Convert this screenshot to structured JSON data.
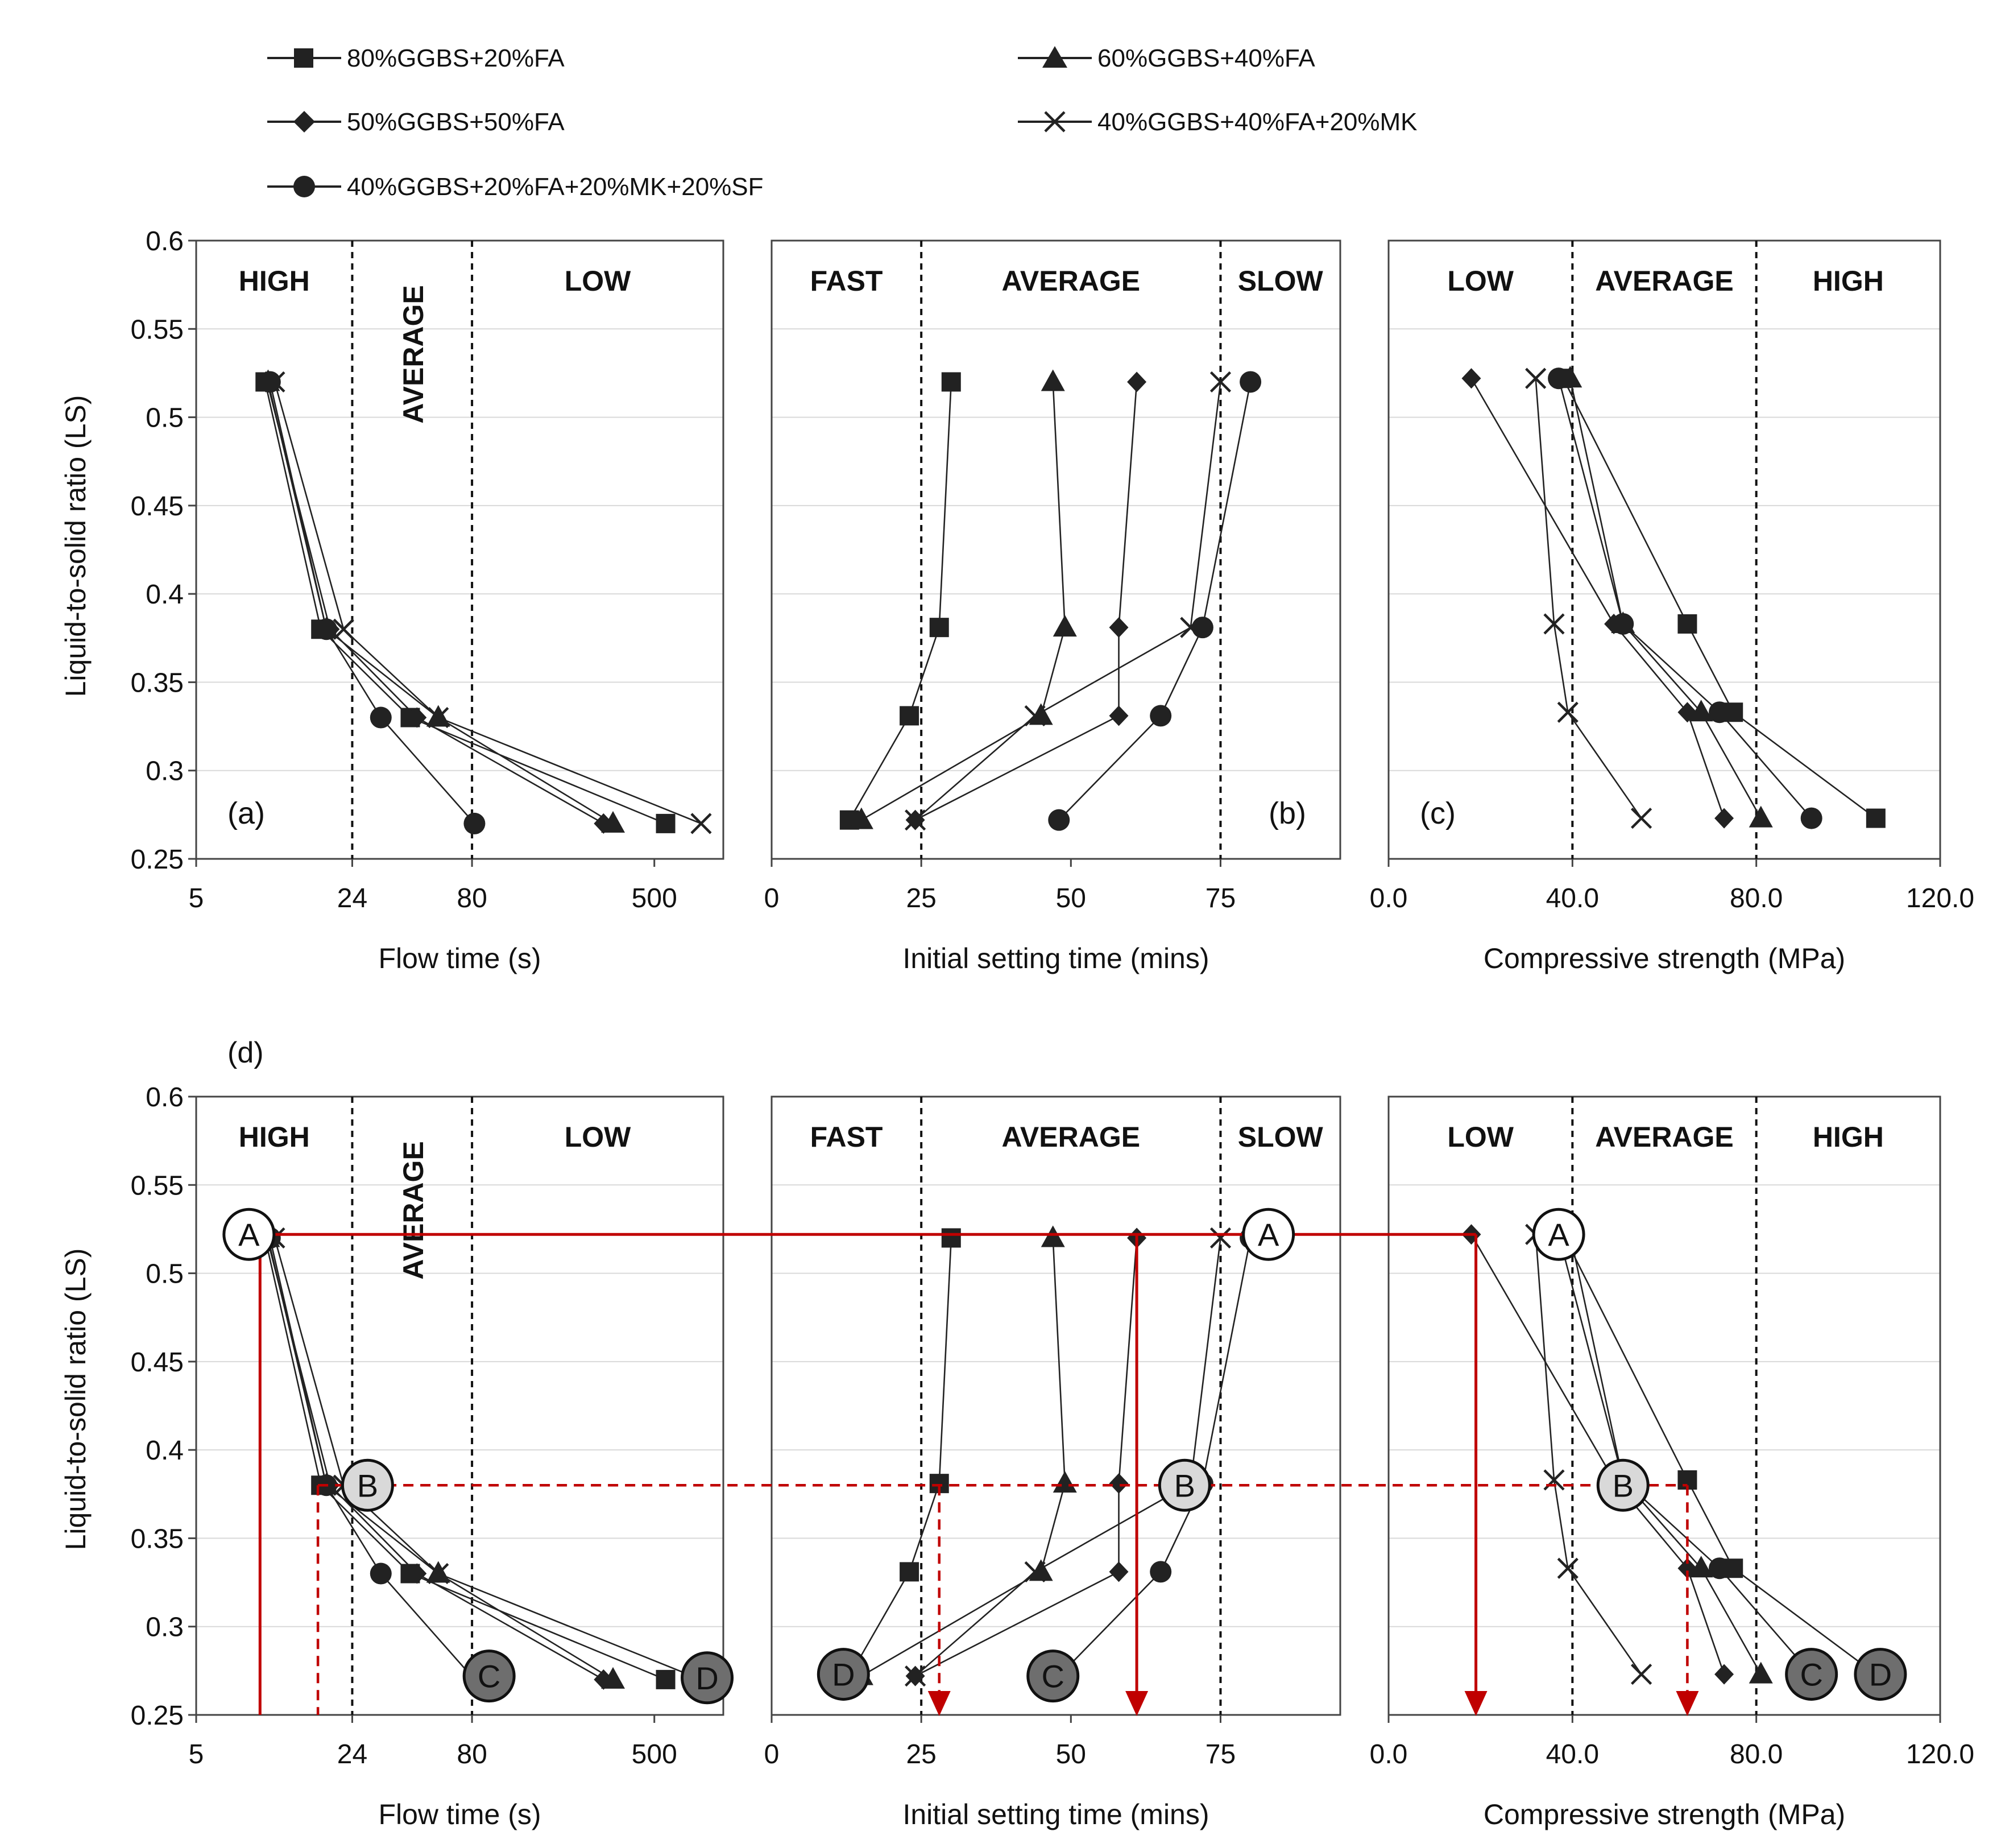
{
  "legend": [
    {
      "label": "80%GGBS+20%FA",
      "marker": "square"
    },
    {
      "label": "60%GGBS+40%FA",
      "marker": "triangle"
    },
    {
      "label": "50%GGBS+50%FA",
      "marker": "diamond"
    },
    {
      "label": "40%GGBS+40%FA+20%MK",
      "marker": "x"
    },
    {
      "label": "40%GGBS+20%FA+20%MK+20%SF",
      "marker": "circle"
    }
  ],
  "ylabel": "Liquid-to-solid ratio (LS)",
  "y_ticks": [
    "0.6",
    "0.55",
    "0.5",
    "0.45",
    "0.4",
    "0.35",
    "0.3",
    "0.25"
  ],
  "panel_d_label": "(d)",
  "colors": {
    "ink": "#222222",
    "guide": "#c00000",
    "grid": "#d9d9d9",
    "circle_light": "#d9d9d9",
    "circle_dark": "#6e6e6e"
  },
  "chart_data": [
    {
      "id": "a",
      "type": "line",
      "title": "(a)",
      "xlabel": "Flow time (s)",
      "x_scale": "log",
      "xlim": [
        5,
        1000
      ],
      "x_ticks": [
        "5",
        "24",
        "80",
        "500"
      ],
      "ylim": [
        0.25,
        0.6
      ],
      "zone_boundaries": [
        24,
        80
      ],
      "zones": [
        {
          "label": "HIGH"
        },
        {
          "label": "AVERAGE",
          "rotated": true
        },
        {
          "label": "LOW"
        }
      ],
      "series": [
        {
          "name": "80%GGBS+20%FA",
          "marker": "square",
          "x": [
            10,
            17.5,
            43,
            560
          ],
          "y": [
            0.52,
            0.38,
            0.33,
            0.27
          ]
        },
        {
          "name": "60%GGBS+40%FA",
          "marker": "triangle",
          "x": [
            10.3,
            18.5,
            57,
            330
          ],
          "y": [
            0.52,
            0.38,
            0.33,
            0.27
          ]
        },
        {
          "name": "50%GGBS+50%FA",
          "marker": "diamond",
          "x": [
            10.2,
            19.2,
            46,
            300
          ],
          "y": [
            0.52,
            0.38,
            0.33,
            0.27
          ]
        },
        {
          "name": "40%GGBS+40%FA+20%MK",
          "marker": "x",
          "x": [
            11,
            22,
            57,
            800
          ],
          "y": [
            0.52,
            0.38,
            0.33,
            0.27
          ]
        },
        {
          "name": "40%GGBS+20%FA+20%MK+20%SF",
          "marker": "circle",
          "x": [
            10.5,
            18.5,
            32,
            82
          ],
          "y": [
            0.52,
            0.38,
            0.33,
            0.27
          ]
        }
      ]
    },
    {
      "id": "b",
      "type": "line",
      "title": "(b)",
      "xlabel": "Initial setting time (mins)",
      "x_scale": "linear",
      "xlim": [
        0,
        95
      ],
      "x_ticks": [
        "0",
        "25",
        "50",
        "75"
      ],
      "ylim": [
        0.25,
        0.6
      ],
      "zone_boundaries": [
        25,
        75
      ],
      "zones": [
        {
          "label": "FAST"
        },
        {
          "label": "AVERAGE"
        },
        {
          "label": "SLOW"
        }
      ],
      "series": [
        {
          "name": "80%GGBS+20%FA",
          "marker": "square",
          "x": [
            30,
            28,
            23,
            13
          ],
          "y": [
            0.52,
            0.381,
            0.331,
            0.272
          ]
        },
        {
          "name": "60%GGBS+40%FA",
          "marker": "triangle",
          "x": [
            47,
            49,
            45,
            15
          ],
          "y": [
            0.52,
            0.381,
            0.331,
            0.272
          ]
        },
        {
          "name": "50%GGBS+50%FA",
          "marker": "diamond",
          "x": [
            61,
            58,
            58,
            24
          ],
          "y": [
            0.52,
            0.381,
            0.331,
            0.272
          ]
        },
        {
          "name": "40%GGBS+40%FA+20%MK",
          "marker": "x",
          "x": [
            75,
            70,
            44,
            24
          ],
          "y": [
            0.52,
            0.381,
            0.331,
            0.272
          ]
        },
        {
          "name": "40%GGBS+20%FA+20%MK+20%SF",
          "marker": "circle",
          "x": [
            80,
            72,
            65,
            48
          ],
          "y": [
            0.52,
            0.381,
            0.331,
            0.272
          ]
        }
      ]
    },
    {
      "id": "c",
      "type": "line",
      "title": "(c)",
      "xlabel": "Compressive strength (MPa)",
      "x_scale": "linear",
      "xlim": [
        0,
        120
      ],
      "x_ticks": [
        "0.0",
        "40.0",
        "80.0",
        "120.0"
      ],
      "ylim": [
        0.25,
        0.6
      ],
      "zone_boundaries": [
        40,
        80
      ],
      "zones": [
        {
          "label": "LOW"
        },
        {
          "label": "AVERAGE"
        },
        {
          "label": "HIGH"
        }
      ],
      "series": [
        {
          "name": "80%GGBS+20%FA",
          "marker": "square",
          "x": [
            38,
            65,
            75,
            106
          ],
          "y": [
            0.522,
            0.383,
            0.333,
            0.273
          ]
        },
        {
          "name": "60%GGBS+40%FA",
          "marker": "triangle",
          "x": [
            39.5,
            51,
            68,
            81
          ],
          "y": [
            0.522,
            0.383,
            0.333,
            0.273
          ]
        },
        {
          "name": "50%GGBS+50%FA",
          "marker": "diamond",
          "x": [
            18,
            49,
            65,
            73
          ],
          "y": [
            0.522,
            0.383,
            0.333,
            0.273
          ]
        },
        {
          "name": "40%GGBS+40%FA+20%MK",
          "marker": "x",
          "x": [
            32,
            36,
            39,
            55
          ],
          "y": [
            0.522,
            0.383,
            0.333,
            0.273
          ]
        },
        {
          "name": "40%GGBS+20%FA+20%MK+20%SF",
          "marker": "circle",
          "x": [
            37,
            51,
            72,
            92
          ],
          "y": [
            0.522,
            0.383,
            0.333,
            0.273
          ]
        }
      ]
    },
    {
      "id": "d1",
      "type": "line",
      "title": "",
      "xlabel": "Flow time (s)",
      "x_scale": "log",
      "xlim": [
        5,
        1000
      ],
      "x_ticks": [
        "5",
        "24",
        "80",
        "500"
      ],
      "ylim": [
        0.25,
        0.6
      ],
      "zone_boundaries": [
        24,
        80
      ],
      "zones": [
        {
          "label": "HIGH"
        },
        {
          "label": "AVERAGE",
          "rotated": true
        },
        {
          "label": "LOW"
        }
      ],
      "series": [
        {
          "name": "80%GGBS+20%FA",
          "marker": "square",
          "x": [
            10,
            17.5,
            43,
            560
          ],
          "y": [
            0.52,
            0.38,
            0.33,
            0.27
          ]
        },
        {
          "name": "60%GGBS+40%FA",
          "marker": "triangle",
          "x": [
            10.3,
            18.5,
            57,
            330
          ],
          "y": [
            0.52,
            0.38,
            0.33,
            0.27
          ]
        },
        {
          "name": "50%GGBS+50%FA",
          "marker": "diamond",
          "x": [
            10.2,
            19.2,
            46,
            300
          ],
          "y": [
            0.52,
            0.38,
            0.33,
            0.27
          ]
        },
        {
          "name": "40%GGBS+40%FA+20%MK",
          "marker": "x",
          "x": [
            11,
            22,
            57,
            800
          ],
          "y": [
            0.52,
            0.38,
            0.33,
            0.27
          ]
        },
        {
          "name": "40%GGBS+20%FA+20%MK+20%SF",
          "marker": "circle",
          "x": [
            10.5,
            18.5,
            32,
            82
          ],
          "y": [
            0.52,
            0.38,
            0.33,
            0.27
          ]
        }
      ],
      "annotations": [
        {
          "label": "A",
          "x": 8.5,
          "y": 0.522,
          "shade": "white"
        },
        {
          "label": "B",
          "x": 28,
          "y": 0.38,
          "shade": "light"
        },
        {
          "label": "C",
          "x": 95,
          "y": 0.272,
          "shade": "dark"
        },
        {
          "label": "D",
          "x": 850,
          "y": 0.271,
          "shade": "dark"
        }
      ]
    },
    {
      "id": "d2",
      "type": "line",
      "title": "",
      "xlabel": "Initial setting time (mins)",
      "x_scale": "linear",
      "xlim": [
        0,
        95
      ],
      "x_ticks": [
        "0",
        "25",
        "50",
        "75"
      ],
      "ylim": [
        0.25,
        0.6
      ],
      "zone_boundaries": [
        25,
        75
      ],
      "zones": [
        {
          "label": "FAST"
        },
        {
          "label": "AVERAGE"
        },
        {
          "label": "SLOW"
        }
      ],
      "series": [
        {
          "name": "80%GGBS+20%FA",
          "marker": "square",
          "x": [
            30,
            28,
            23,
            13
          ],
          "y": [
            0.52,
            0.381,
            0.331,
            0.272
          ]
        },
        {
          "name": "60%GGBS+40%FA",
          "marker": "triangle",
          "x": [
            47,
            49,
            45,
            15
          ],
          "y": [
            0.52,
            0.381,
            0.331,
            0.272
          ]
        },
        {
          "name": "50%GGBS+50%FA",
          "marker": "diamond",
          "x": [
            61,
            58,
            58,
            24
          ],
          "y": [
            0.52,
            0.381,
            0.331,
            0.272
          ]
        },
        {
          "name": "40%GGBS+40%FA+20%MK",
          "marker": "x",
          "x": [
            75,
            70,
            44,
            24
          ],
          "y": [
            0.52,
            0.381,
            0.331,
            0.272
          ]
        },
        {
          "name": "40%GGBS+20%FA+20%MK+20%SF",
          "marker": "circle",
          "x": [
            80,
            72,
            65,
            48
          ],
          "y": [
            0.52,
            0.381,
            0.331,
            0.272
          ]
        }
      ],
      "annotations": [
        {
          "label": "A",
          "x": 83,
          "y": 0.522,
          "shade": "white"
        },
        {
          "label": "B",
          "x": 69,
          "y": 0.38,
          "shade": "light"
        },
        {
          "label": "C",
          "x": 47,
          "y": 0.272,
          "shade": "dark"
        },
        {
          "label": "D",
          "x": 12,
          "y": 0.273,
          "shade": "dark"
        }
      ]
    },
    {
      "id": "d3",
      "type": "line",
      "title": "",
      "xlabel": "Compressive strength (MPa)",
      "x_scale": "linear",
      "xlim": [
        0,
        120
      ],
      "x_ticks": [
        "0.0",
        "40.0",
        "80.0",
        "120.0"
      ],
      "ylim": [
        0.25,
        0.6
      ],
      "zone_boundaries": [
        40,
        80
      ],
      "zones": [
        {
          "label": "LOW"
        },
        {
          "label": "AVERAGE"
        },
        {
          "label": "HIGH"
        }
      ],
      "series": [
        {
          "name": "80%GGBS+20%FA",
          "marker": "square",
          "x": [
            38,
            65,
            75,
            106
          ],
          "y": [
            0.522,
            0.383,
            0.333,
            0.273
          ]
        },
        {
          "name": "60%GGBS+40%FA",
          "marker": "triangle",
          "x": [
            39.5,
            51,
            68,
            81
          ],
          "y": [
            0.522,
            0.383,
            0.333,
            0.273
          ]
        },
        {
          "name": "50%GGBS+50%FA",
          "marker": "diamond",
          "x": [
            18,
            49,
            65,
            73
          ],
          "y": [
            0.522,
            0.383,
            0.333,
            0.273
          ]
        },
        {
          "name": "40%GGBS+40%FA+20%MK",
          "marker": "x",
          "x": [
            32,
            36,
            39,
            55
          ],
          "y": [
            0.522,
            0.383,
            0.333,
            0.273
          ]
        },
        {
          "name": "40%GGBS+20%FA+20%MK+20%SF",
          "marker": "circle",
          "x": [
            37,
            51,
            72,
            92
          ],
          "y": [
            0.522,
            0.383,
            0.333,
            0.273
          ]
        }
      ],
      "annotations": [
        {
          "label": "A",
          "x": 37,
          "y": 0.522,
          "shade": "white"
        },
        {
          "label": "B",
          "x": 51,
          "y": 0.38,
          "shade": "light"
        },
        {
          "label": "C",
          "x": 92,
          "y": 0.273,
          "shade": "dark"
        },
        {
          "label": "D",
          "x": 107,
          "y": 0.273,
          "shade": "dark"
        }
      ]
    }
  ],
  "guides": {
    "solid_y": 0.522,
    "dashed_y": 0.38,
    "solid_drop_x": [
      9.5,
      61,
      19
    ],
    "dashed_drop_x": [
      17,
      28,
      65
    ]
  }
}
